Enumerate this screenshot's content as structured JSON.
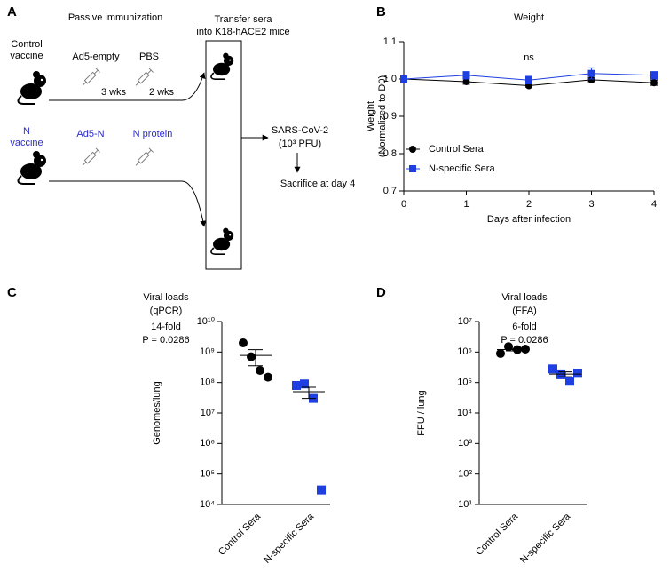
{
  "diagram": {
    "label": "A",
    "header": "Passive immunization",
    "transfer": [
      "Transfer sera",
      "into K18-hACE2 mice"
    ],
    "groups": [
      {
        "name": [
          "Control",
          "vaccine"
        ],
        "prime": "Ad5-empty",
        "boost": "PBS",
        "intervals": [
          "3 wks",
          "2 wks"
        ]
      },
      {
        "name": [
          "N",
          "vaccine"
        ],
        "prime": "Ad5-N",
        "boost": "N protein"
      }
    ],
    "challenge": [
      "SARS-CoV-2",
      "(10³ PFU)"
    ],
    "endpoint": "Sacrifice at day 4"
  },
  "chart_data": [
    {
      "type": "line",
      "label": "B",
      "title": "Weight",
      "annotation": "ns",
      "xlabel": "Days after infection",
      "ylabel": [
        "Weight",
        "(Normalized to D0)"
      ],
      "x": [
        0,
        1,
        2,
        3,
        4
      ],
      "xlim": [
        0,
        4
      ],
      "xticks": [
        0,
        1,
        2,
        3,
        4
      ],
      "ylim": [
        0.7,
        1.1
      ],
      "yticks": [
        0.7,
        0.8,
        0.9,
        {
          "value": 1,
          "label": "1.0"
        },
        1.1
      ],
      "legend": "lower left",
      "series": [
        {
          "name": "Control Sera",
          "color": "#000000",
          "marker": "circle",
          "values": [
            1.0,
            0.993,
            0.982,
            0.998,
            0.99
          ],
          "errors": [
            0,
            0.007,
            0.004,
            0.005,
            0.007
          ]
        },
        {
          "name": "N-specific Sera",
          "color": "#1f3fe0",
          "marker": "square",
          "values": [
            1.0,
            1.01,
            0.997,
            1.015,
            1.01
          ],
          "errors": [
            0,
            0.01,
            0.01,
            0.015,
            0.01
          ]
        }
      ]
    },
    {
      "type": "dot",
      "label": "C",
      "title": [
        "Viral loads",
        "(qPCR)"
      ],
      "annotation": [
        "14-fold",
        "P = 0.0286"
      ],
      "ylabel": "Genomes/lung",
      "log_scale": true,
      "categories": [
        "Control Sera",
        "N-specific Sera"
      ],
      "colors": [
        "#000000",
        "#1f3fe0"
      ],
      "markers": [
        "circle",
        "square"
      ],
      "values": [
        [
          2000000000,
          700000000,
          250000000,
          150000000
        ],
        [
          80000000,
          90000000,
          30000000,
          30000
        ]
      ],
      "means": [
        775000000,
        50000000
      ],
      "errors": [
        420000000,
        20000000
      ],
      "ylim": [
        10000,
        10000000000
      ],
      "yticks": [
        {
          "value": 10000,
          "label": "10⁴"
        },
        {
          "value": 100000,
          "label": "10⁵"
        },
        {
          "value": 1000000,
          "label": "10⁶"
        },
        {
          "value": 10000000,
          "label": "10⁷"
        },
        {
          "value": 100000000,
          "label": "10⁸"
        },
        {
          "value": 1000000000,
          "label": "10⁹"
        },
        {
          "value": 10000000000,
          "label": "10¹⁰"
        }
      ]
    },
    {
      "type": "dot",
      "label": "D",
      "title": [
        "Viral loads",
        "(FFA)"
      ],
      "annotation": [
        "6-fold",
        "P = 0.0286"
      ],
      "ylabel": "FFU / lung",
      "log_scale": true,
      "categories": [
        "Control Sera",
        "N-specific Sera"
      ],
      "colors": [
        "#000000",
        "#1f3fe0"
      ],
      "markers": [
        "circle",
        "square"
      ],
      "values": [
        [
          900000,
          1500000,
          1200000,
          1250000
        ],
        [
          280000,
          180000,
          110000,
          200000
        ]
      ],
      "means": [
        1210000,
        190000
      ],
      "errors": [
        120000,
        35000
      ],
      "ylim": [
        10,
        10000000
      ],
      "yticks": [
        {
          "value": 10,
          "label": "10¹"
        },
        {
          "value": 100,
          "label": "10²"
        },
        {
          "value": 1000,
          "label": "10³"
        },
        {
          "value": 10000,
          "label": "10⁴"
        },
        {
          "value": 100000,
          "label": "10⁵"
        },
        {
          "value": 1000000,
          "label": "10⁶"
        },
        {
          "value": 10000000,
          "label": "10⁷"
        }
      ]
    }
  ]
}
